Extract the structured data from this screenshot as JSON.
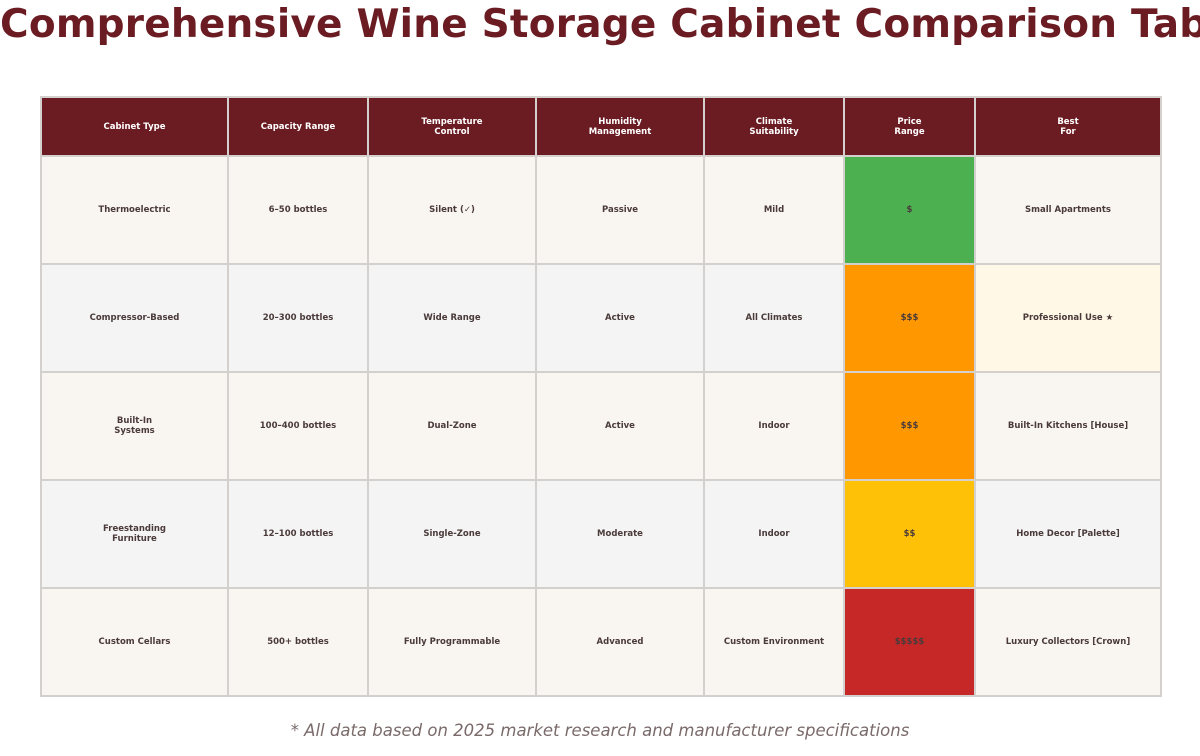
{
  "title": "Comprehensive Wine Storage Cabinet Comparison Table",
  "headers": [
    "Cabinet Type",
    "Capacity Range",
    "Temperature\nControl",
    "Humidity\nManagement",
    "Climate\nSuitability",
    "Price\nRange",
    "Best\nFor"
  ],
  "rows": [
    {
      "cells": [
        "Thermoelectric",
        "6–50 bottles",
        "Silent (✓)",
        "Passive",
        "Mild",
        "$",
        "Small Apartments"
      ],
      "price_color": "#4caf50",
      "best_highlight": null
    },
    {
      "cells": [
        "Compressor-Based",
        "20–300 bottles",
        "Wide Range",
        "Active",
        "All Climates",
        "$$$",
        "Professional Use ★"
      ],
      "price_color": "#ff9800",
      "best_highlight": "#fff8e6"
    },
    {
      "cells": [
        "Built-In\nSystems",
        "100–400 bottles",
        "Dual-Zone",
        "Active",
        "Indoor",
        "$$$",
        "Built-In Kitchens [House]"
      ],
      "price_color": "#ff9800",
      "best_highlight": null
    },
    {
      "cells": [
        "Freestanding\nFurniture",
        "12–100 bottles",
        "Single-Zone",
        "Moderate",
        "Indoor",
        "$$",
        "Home Decor [Palette]"
      ],
      "price_color": "#ffc107",
      "best_highlight": null
    },
    {
      "cells": [
        "Custom Cellars",
        "500+ bottles",
        "Fully Programmable",
        "Advanced",
        "Custom Environment",
        "$$$$$",
        "Luxury Collectors [Crown]"
      ],
      "price_color": "#c62828",
      "best_highlight": null
    }
  ],
  "footnote": "* All data based on 2025 market research and manufacturer specifications",
  "colors": {
    "header": "#6b1c23",
    "title": "#6b1c23"
  }
}
